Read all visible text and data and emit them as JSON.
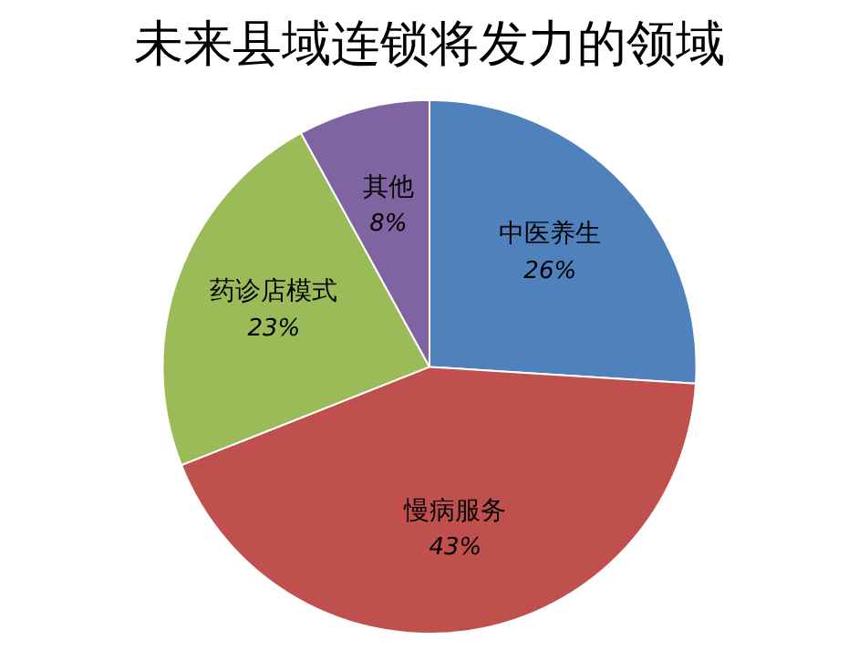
{
  "chart_data": {
    "type": "pie",
    "title": "未来县域连锁将发力的领域",
    "categories": [
      "中医养生",
      "慢病服务",
      "药诊店模式",
      "其他"
    ],
    "values": [
      26,
      43,
      23,
      8
    ],
    "value_labels": [
      "26%",
      "43%",
      "23%",
      "8%"
    ],
    "colors": [
      "#4f81bd",
      "#c0504d",
      "#9bbb59",
      "#8064a2"
    ],
    "legend": false
  }
}
